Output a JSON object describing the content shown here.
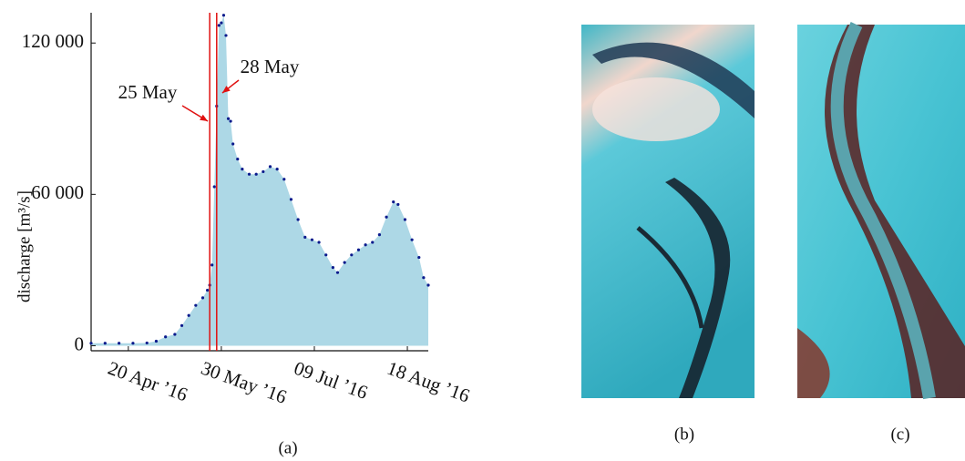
{
  "chart_data": {
    "type": "scatter-area",
    "ylabel": "discharge [m³/s]",
    "x": [
      "2016-04-04",
      "2016-04-10",
      "2016-04-16",
      "2016-04-22",
      "2016-04-28",
      "2016-05-02",
      "2016-05-06",
      "2016-05-10",
      "2016-05-13",
      "2016-05-16",
      "2016-05-19",
      "2016-05-22",
      "2016-05-24",
      "2016-05-25",
      "2016-05-26",
      "2016-05-27",
      "2016-05-28",
      "2016-05-29",
      "2016-05-30",
      "2016-05-31",
      "2016-06-01",
      "2016-06-02",
      "2016-06-03",
      "2016-06-04",
      "2016-06-06",
      "2016-06-08",
      "2016-06-11",
      "2016-06-14",
      "2016-06-17",
      "2016-06-20",
      "2016-06-23",
      "2016-06-26",
      "2016-06-29",
      "2016-07-02",
      "2016-07-05",
      "2016-07-08",
      "2016-07-11",
      "2016-07-14",
      "2016-07-17",
      "2016-07-19",
      "2016-07-22",
      "2016-07-25",
      "2016-07-28",
      "2016-07-31",
      "2016-08-03",
      "2016-08-06",
      "2016-08-09",
      "2016-08-12",
      "2016-08-14",
      "2016-08-17",
      "2016-08-20",
      "2016-08-23",
      "2016-08-25",
      "2016-08-27"
    ],
    "values": [
      1000,
      1000,
      1000,
      1000,
      1100,
      1800,
      3500,
      4500,
      8000,
      12000,
      16000,
      19000,
      22000,
      24000,
      32000,
      63000,
      95000,
      127000,
      128000,
      131000,
      123000,
      90000,
      89000,
      80000,
      74000,
      70000,
      68000,
      68000,
      69000,
      71000,
      70000,
      66000,
      58000,
      50000,
      43000,
      42000,
      41000,
      36000,
      31000,
      29000,
      33000,
      36000,
      38000,
      40000,
      41000,
      44000,
      51000,
      57000,
      56000,
      50000,
      42000,
      35000,
      27000,
      24000
    ],
    "color": "#0a1a8c",
    "fill": "#add8e6",
    "xlim": [
      "2016-04-04",
      "2016-08-27"
    ],
    "xticks": [
      {
        "value": "2016-04-20",
        "label": "20 Apr ’16"
      },
      {
        "value": "2016-05-30",
        "label": "30 May ’16"
      },
      {
        "value": "2016-07-09",
        "label": "09 Jul ’16"
      },
      {
        "value": "2016-08-18",
        "label": "18 Aug ’16"
      }
    ],
    "ylim": [
      -2000,
      132000
    ],
    "yticks": [
      0,
      {
        "value": 60000,
        "label": "60 000"
      },
      {
        "value": 120000,
        "label": "120 000"
      }
    ],
    "vlines": [
      {
        "x": "2016-05-25",
        "label": "25 May"
      },
      {
        "x": "2016-05-28",
        "label": "28 May"
      }
    ],
    "vline_color": "#e01010"
  },
  "captions": [
    "(a)",
    "(b)",
    "(c)"
  ]
}
